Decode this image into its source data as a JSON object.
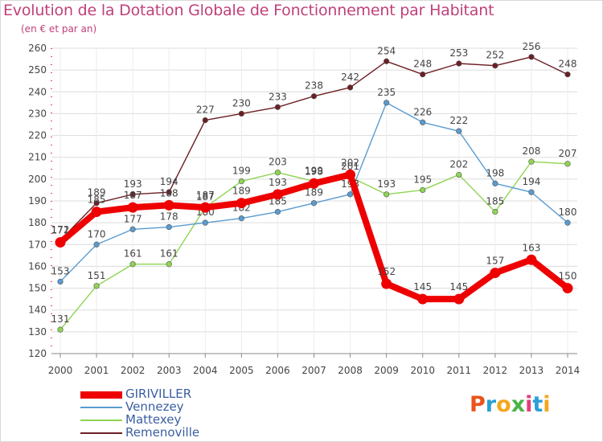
{
  "title": "Evolution de la Dotation Globale de Fonctionnement par Habitant",
  "subtitle": "(en € et par an)",
  "logo_text": "Proxiti",
  "logo_colors": [
    "#e8541c",
    "#2a9fd8",
    "#f2a81d",
    "#4bb349",
    "#e23c7b",
    "#2a9fd8",
    "#f2a81d"
  ],
  "chart_data": {
    "type": "line",
    "x": [
      2000,
      2001,
      2002,
      2003,
      2004,
      2005,
      2006,
      2007,
      2008,
      2009,
      2010,
      2011,
      2012,
      2013,
      2014
    ],
    "ylim": [
      120,
      260
    ],
    "yticks": [
      120,
      130,
      140,
      150,
      160,
      170,
      180,
      190,
      200,
      210,
      220,
      230,
      240,
      250,
      260
    ],
    "grid": true,
    "legend_position": "bottom-left",
    "series": [
      {
        "name": "Remenoville",
        "color": "#6b1f24",
        "values": [
          172,
          189,
          193,
          194,
          227,
          230,
          233,
          238,
          242,
          254,
          248,
          253,
          252,
          256,
          248
        ]
      },
      {
        "name": "Mattexey",
        "color": "#8fd453",
        "values": [
          131,
          151,
          161,
          161,
          187,
          199,
          203,
          199,
          201,
          193,
          195,
          202,
          185,
          208,
          207
        ]
      },
      {
        "name": "Vennezey",
        "color": "#5a9bd0",
        "values": [
          153,
          170,
          177,
          178,
          180,
          182,
          185,
          189,
          193,
          235,
          226,
          222,
          198,
          194,
          180
        ]
      },
      {
        "name": "GIRIVILLER",
        "color": "#ee0000",
        "values": [
          171,
          185,
          187,
          188,
          187,
          189,
          193,
          198,
          202,
          152,
          145,
          145,
          157,
          163,
          150
        ]
      }
    ]
  }
}
